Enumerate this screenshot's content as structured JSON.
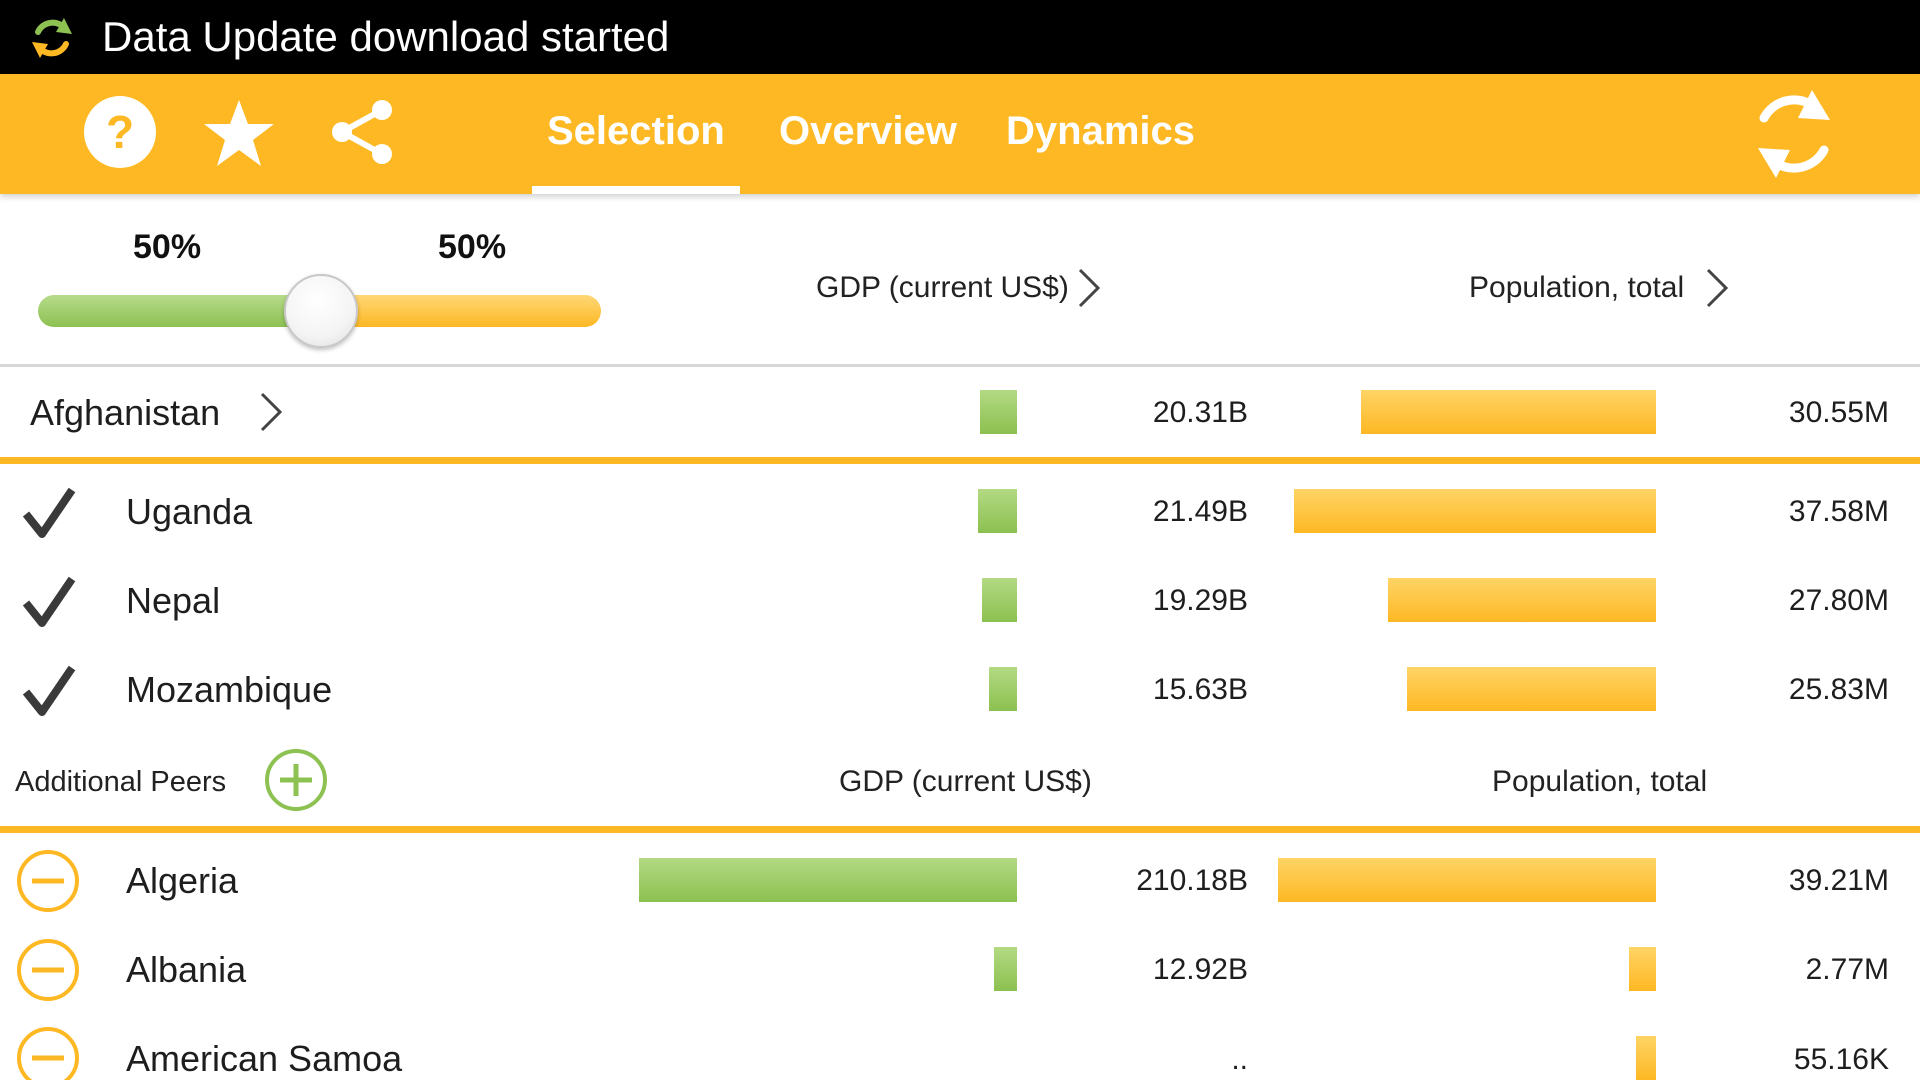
{
  "status_bar": {
    "text": "Data Update download started",
    "icon": "sync-icon"
  },
  "toolbar": {
    "icons": [
      "help-icon",
      "star-icon",
      "share-icon",
      "refresh-icon"
    ],
    "tabs": [
      {
        "label": "Selection",
        "active": true
      },
      {
        "label": "Overview",
        "active": false
      },
      {
        "label": "Dynamics",
        "active": false
      }
    ],
    "accent_color": "#FDB823"
  },
  "weights": {
    "left_label": "50%",
    "right_label": "50%",
    "left_value": 0.5
  },
  "columns": {
    "gdp": "GDP (current US$)",
    "population": "Population, total"
  },
  "selected_country": {
    "name": "Afghanistan",
    "gdp": "20.31B",
    "population": "30.55M",
    "gdp_value": 20.31,
    "population_value": 30.55
  },
  "peers": [
    {
      "name": "Uganda",
      "gdp": "21.49B",
      "population": "37.58M",
      "gdp_value": 21.49,
      "population_value": 37.58,
      "checked": true
    },
    {
      "name": "Nepal",
      "gdp": "19.29B",
      "population": "27.80M",
      "gdp_value": 19.29,
      "population_value": 27.8,
      "checked": true
    },
    {
      "name": "Mozambique",
      "gdp": "15.63B",
      "population": "25.83M",
      "gdp_value": 15.63,
      "population_value": 25.83,
      "checked": true
    }
  ],
  "additional_peers": {
    "label": "Additional Peers",
    "gdp_header": "GDP (current US$)",
    "population_header": "Population, total",
    "rows": [
      {
        "name": "Algeria",
        "gdp": "210.18B",
        "population": "39.21M",
        "gdp_value": 210.18,
        "population_value": 39.21
      },
      {
        "name": "Albania",
        "gdp": "12.92B",
        "population": "2.77M",
        "gdp_value": 12.92,
        "population_value": 2.77
      },
      {
        "name": "American Samoa",
        "gdp": "..",
        "population": "55.16K",
        "gdp_value": null,
        "population_value": 0.05516
      }
    ]
  }
}
